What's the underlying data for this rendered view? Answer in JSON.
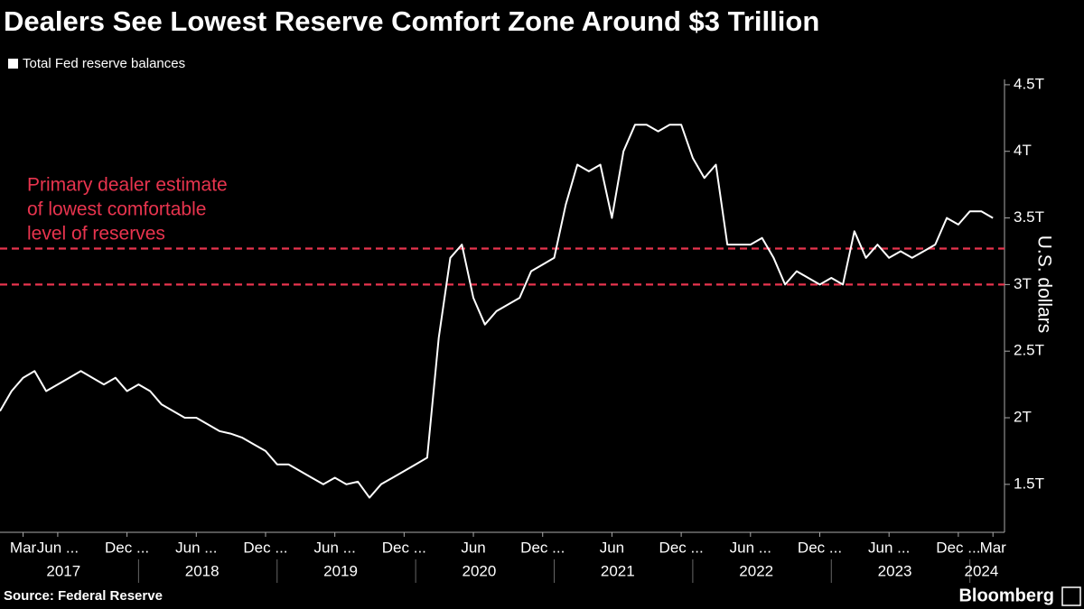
{
  "chart_data": {
    "type": "line",
    "title": "Dealers See Lowest Reserve Comfort Zone Around $3 Trillion",
    "y_label": "U.S. dollars",
    "source": "Source: Federal Reserve",
    "brand": "Bloomberg",
    "x": [
      "2017-01",
      "2017-02",
      "2017-03",
      "2017-04",
      "2017-05",
      "2017-06",
      "2017-07",
      "2017-08",
      "2017-09",
      "2017-10",
      "2017-11",
      "2017-12",
      "2018-01",
      "2018-02",
      "2018-03",
      "2018-04",
      "2018-05",
      "2018-06",
      "2018-07",
      "2018-08",
      "2018-09",
      "2018-10",
      "2018-11",
      "2018-12",
      "2019-01",
      "2019-02",
      "2019-03",
      "2019-04",
      "2019-05",
      "2019-06",
      "2019-07",
      "2019-08",
      "2019-09",
      "2019-10",
      "2019-11",
      "2019-12",
      "2020-01",
      "2020-02",
      "2020-03",
      "2020-04",
      "2020-05",
      "2020-06",
      "2020-07",
      "2020-08",
      "2020-09",
      "2020-10",
      "2020-11",
      "2020-12",
      "2021-01",
      "2021-02",
      "2021-03",
      "2021-04",
      "2021-05",
      "2021-06",
      "2021-07",
      "2021-08",
      "2021-09",
      "2021-10",
      "2021-11",
      "2021-12",
      "2022-01",
      "2022-02",
      "2022-03",
      "2022-04",
      "2022-05",
      "2022-06",
      "2022-07",
      "2022-08",
      "2022-09",
      "2022-10",
      "2022-11",
      "2022-12",
      "2023-01",
      "2023-02",
      "2023-03",
      "2023-04",
      "2023-05",
      "2023-06",
      "2023-07",
      "2023-08",
      "2023-09",
      "2023-10",
      "2023-11",
      "2023-12",
      "2024-01",
      "2024-02",
      "2024-03"
    ],
    "series": [
      {
        "name": "Total Fed reserve balances",
        "color": "#ffffff",
        "values": [
          2.05,
          2.2,
          2.3,
          2.35,
          2.2,
          2.25,
          2.3,
          2.35,
          2.3,
          2.25,
          2.3,
          2.2,
          2.25,
          2.2,
          2.1,
          2.05,
          2.0,
          2.0,
          1.95,
          1.9,
          1.88,
          1.85,
          1.8,
          1.75,
          1.65,
          1.65,
          1.6,
          1.55,
          1.5,
          1.55,
          1.5,
          1.52,
          1.4,
          1.5,
          1.55,
          1.6,
          1.65,
          1.7,
          2.6,
          3.2,
          3.3,
          2.9,
          2.7,
          2.8,
          2.85,
          2.9,
          3.1,
          3.15,
          3.2,
          3.6,
          3.9,
          3.85,
          3.9,
          3.5,
          4.0,
          4.2,
          4.2,
          4.15,
          4.2,
          4.2,
          3.95,
          3.8,
          3.9,
          3.3,
          3.3,
          3.3,
          3.35,
          3.2,
          3.0,
          3.1,
          3.05,
          3.0,
          3.05,
          3.0,
          3.4,
          3.2,
          3.3,
          3.2,
          3.25,
          3.2,
          3.25,
          3.3,
          3.5,
          3.45,
          3.55,
          3.55,
          3.5
        ]
      }
    ],
    "xlim": [
      "2017-01",
      "2024-04"
    ],
    "xticks": [
      {
        "value": "2017-03",
        "label": "Mar"
      },
      {
        "value": "2017-06",
        "label": "Jun ..."
      },
      {
        "value": "2017-12",
        "label": "Dec ..."
      },
      {
        "value": "2018-06",
        "label": "Jun ..."
      },
      {
        "value": "2018-12",
        "label": "Dec ..."
      },
      {
        "value": "2019-06",
        "label": "Jun ..."
      },
      {
        "value": "2019-12",
        "label": "Dec ..."
      },
      {
        "value": "2020-06",
        "label": "Jun"
      },
      {
        "value": "2020-12",
        "label": "Dec ..."
      },
      {
        "value": "2021-06",
        "label": "Jun"
      },
      {
        "value": "2021-12",
        "label": "Dec ..."
      },
      {
        "value": "2022-06",
        "label": "Jun ..."
      },
      {
        "value": "2022-12",
        "label": "Dec ..."
      },
      {
        "value": "2023-06",
        "label": "Jun ..."
      },
      {
        "value": "2023-12",
        "label": "Dec ..."
      },
      {
        "value": "2024-03",
        "label": "Mar"
      }
    ],
    "xtick_groups": [
      "2017",
      "2018",
      "2019",
      "2020",
      "2021",
      "2022",
      "2023",
      "2024"
    ],
    "ylim": [
      1.14,
      4.54
    ],
    "yticks": [
      {
        "value": 1.5,
        "label": "1.5T"
      },
      {
        "value": 2,
        "label": "2T"
      },
      {
        "value": 2.5,
        "label": "2.5T"
      },
      {
        "value": 3,
        "label": "3T"
      },
      {
        "value": 3.5,
        "label": "3.5T"
      },
      {
        "value": 4,
        "label": "4T"
      },
      {
        "value": 4.5,
        "label": "4.5T"
      }
    ],
    "reference_lines": [
      3.27,
      3
    ],
    "reference_color": "#e8344e",
    "annotation": [
      "Primary dealer estimate",
      "of lowest comfortable",
      "level of reserves"
    ]
  }
}
